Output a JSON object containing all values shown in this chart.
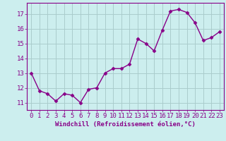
{
  "x": [
    0,
    1,
    2,
    3,
    4,
    5,
    6,
    7,
    8,
    9,
    10,
    11,
    12,
    13,
    14,
    15,
    16,
    17,
    18,
    19,
    20,
    21,
    22,
    23
  ],
  "y": [
    13.0,
    11.8,
    11.6,
    11.1,
    11.6,
    11.5,
    11.0,
    11.9,
    12.0,
    13.0,
    13.3,
    13.3,
    13.6,
    15.3,
    15.0,
    14.5,
    15.9,
    17.2,
    17.3,
    17.1,
    16.4,
    15.2,
    15.4,
    15.8
  ],
  "line_color": "#880088",
  "marker": "D",
  "markersize": 2.5,
  "linewidth": 1.0,
  "xlabel": "Windchill (Refroidissement éolien,°C)",
  "ylim": [
    10.5,
    17.75
  ],
  "xlim": [
    -0.5,
    23.5
  ],
  "yticks": [
    11,
    12,
    13,
    14,
    15,
    16,
    17
  ],
  "xtick_labels": [
    "0",
    "1",
    "2",
    "3",
    "4",
    "5",
    "6",
    "7",
    "8",
    "9",
    "10",
    "11",
    "12",
    "13",
    "14",
    "15",
    "16",
    "17",
    "18",
    "19",
    "20",
    "21",
    "22",
    "23"
  ],
  "bg_color": "#cceeee",
  "grid_color": "#aacccc",
  "font_color": "#880088",
  "xlabel_fontsize": 6.5,
  "tick_fontsize": 6.5
}
